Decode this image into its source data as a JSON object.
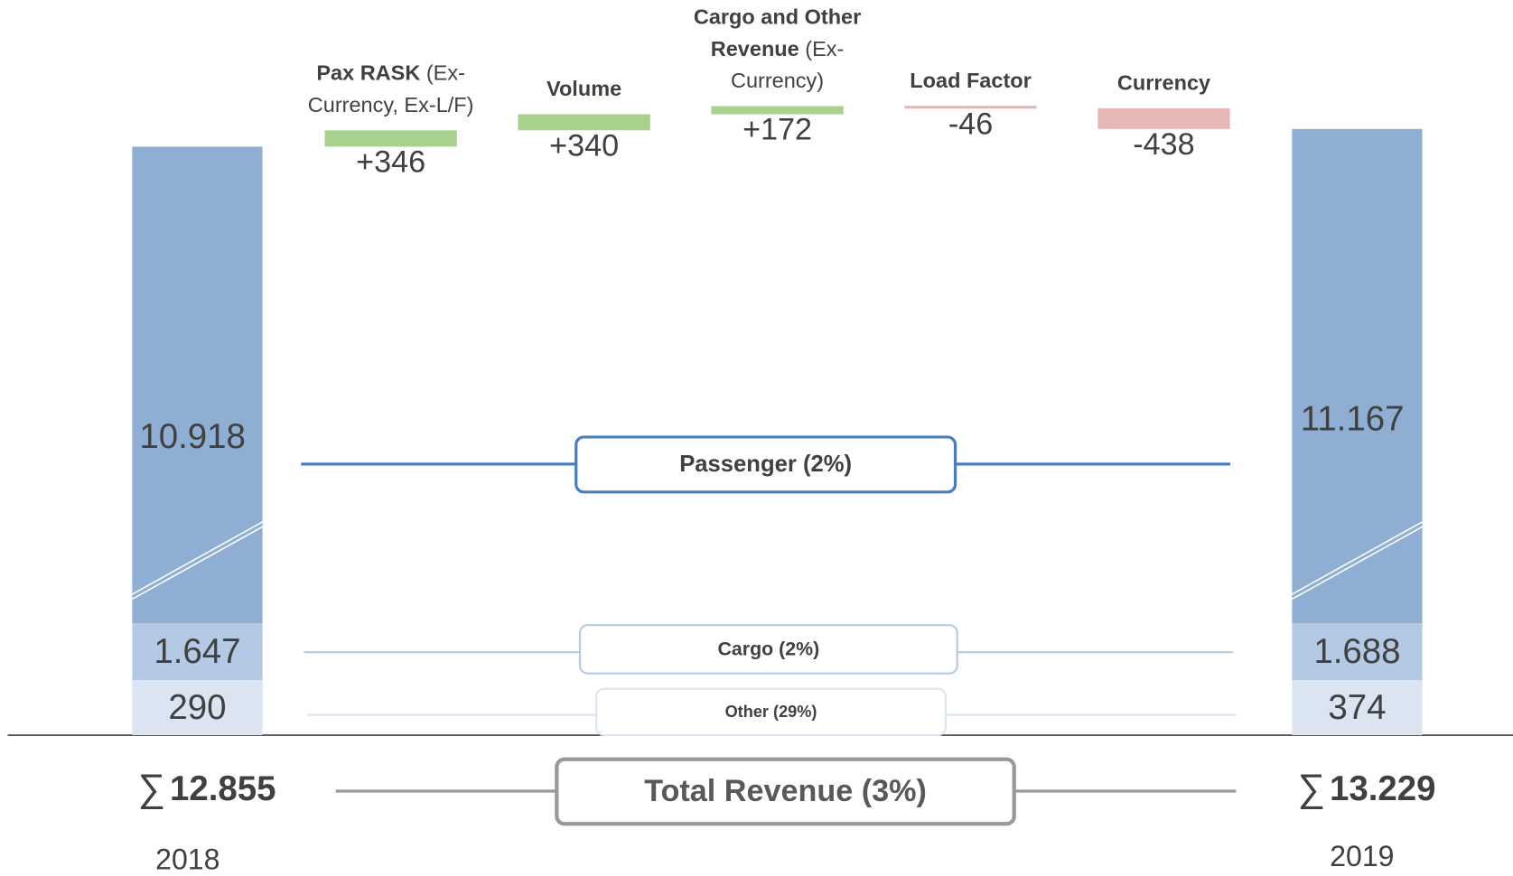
{
  "chart_data": {
    "type": "waterfall",
    "periods": [
      "2018",
      "2019"
    ],
    "series": [
      {
        "name": "Passenger (2%)",
        "color": "#8faed3",
        "line_color": "#4a7ebb",
        "values": [
          10918,
          11167
        ],
        "value_labels": [
          "10.918",
          "11.167"
        ]
      },
      {
        "name": "Cargo (2%)",
        "color": "#b4c9e4",
        "line_color": "#b4c9e4",
        "values": [
          1647,
          1688
        ],
        "value_labels": [
          "1.647",
          "1.688"
        ]
      },
      {
        "name": "Other (29%)",
        "color": "#dbe5f1",
        "line_color": "#dbe5f1",
        "values": [
          290,
          374
        ],
        "value_labels": [
          "290",
          "374"
        ]
      }
    ],
    "totals": {
      "name": "Total Revenue (3%)",
      "symbol": "∑",
      "values": [
        12855,
        13229
      ],
      "value_labels": [
        "12.855",
        "13.229"
      ]
    },
    "bridge": {
      "categories": [
        {
          "title": "Pax RASK",
          "note": "(Ex-Currency, Ex-L/F)"
        },
        {
          "title": "Volume"
        },
        {
          "title": "Cargo and Other Revenue",
          "note": "(Ex-Currency)"
        },
        {
          "title": "Load Factor"
        },
        {
          "title": "Currency"
        }
      ],
      "values": [
        346,
        340,
        172,
        -46,
        -438
      ],
      "value_labels": [
        "+346",
        "+340",
        "+172",
        "-46",
        "-438"
      ],
      "positive_color": "#a9d18e",
      "negative_color": "#e6b9b8"
    }
  }
}
